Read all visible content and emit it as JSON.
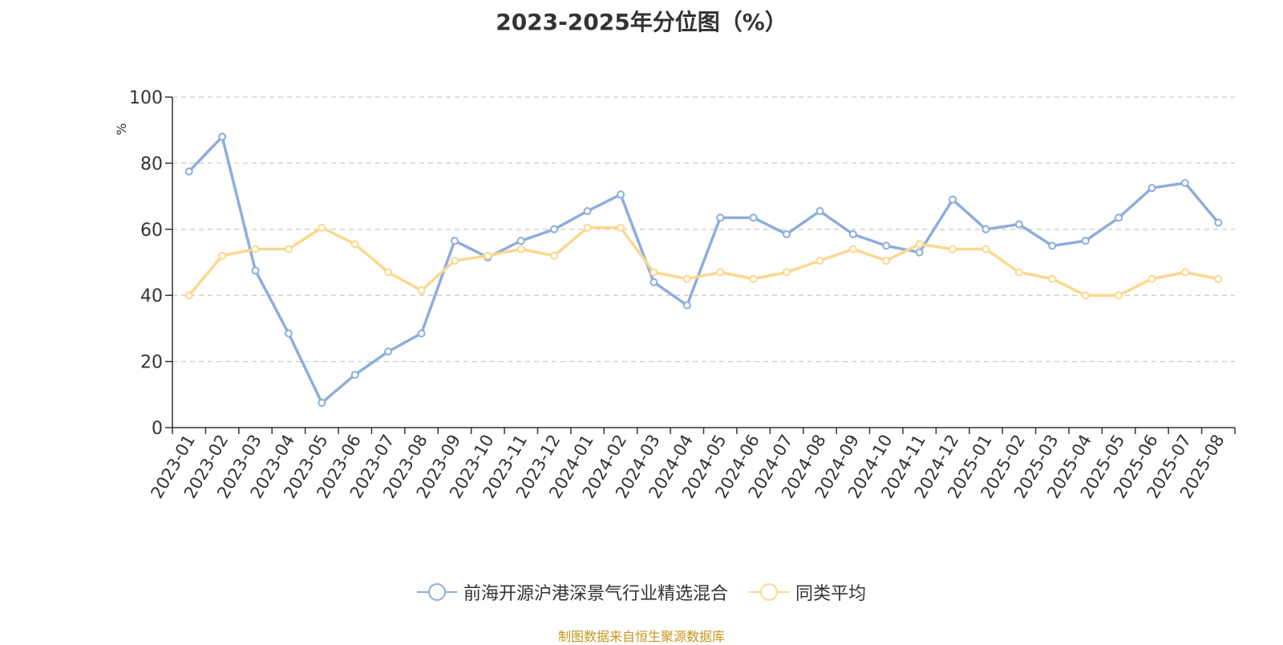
{
  "chart_data": {
    "type": "line",
    "title": "2023-2025年分位图（%）",
    "ylabel": "%",
    "xlabel": "",
    "ylim": [
      0,
      100
    ],
    "yticks": [
      0,
      20,
      40,
      60,
      80,
      100
    ],
    "grid": true,
    "legend_position": "bottom",
    "categories": [
      "2023-01",
      "2023-02",
      "2023-03",
      "2023-04",
      "2023-05",
      "2023-06",
      "2023-07",
      "2023-08",
      "2023-09",
      "2023-10",
      "2023-11",
      "2023-12",
      "2024-01",
      "2024-02",
      "2024-03",
      "2024-04",
      "2024-05",
      "2024-06",
      "2024-07",
      "2024-08",
      "2024-09",
      "2024-10",
      "2024-11",
      "2024-12",
      "2025-01",
      "2025-02",
      "2025-03",
      "2025-04",
      "2025-05",
      "2025-06",
      "2025-07",
      "2025-08"
    ],
    "series": [
      {
        "name": "前海开源沪港深景气行业精选混合",
        "color": "#8eaddc",
        "values": [
          77.5,
          88,
          47.5,
          28.5,
          7.5,
          16,
          23,
          28.5,
          56.5,
          51.5,
          56.5,
          60,
          65.5,
          70.5,
          44,
          37,
          63.5,
          63.5,
          58.5,
          65.5,
          58.5,
          55,
          53,
          69,
          60,
          61.5,
          55,
          56.5,
          63.5,
          72.5,
          74,
          62
        ]
      },
      {
        "name": "同类平均",
        "color": "#fbd88e",
        "values": [
          40,
          52,
          54,
          54,
          60.5,
          55.5,
          47,
          41.5,
          50.5,
          52,
          54,
          52,
          60.5,
          60.5,
          47,
          45,
          47,
          45,
          47,
          50.5,
          54,
          50.5,
          55.5,
          54,
          54,
          47,
          45,
          40,
          40,
          45,
          47,
          45
        ]
      }
    ]
  },
  "source_text": "制图数据来自恒生聚源数据库"
}
